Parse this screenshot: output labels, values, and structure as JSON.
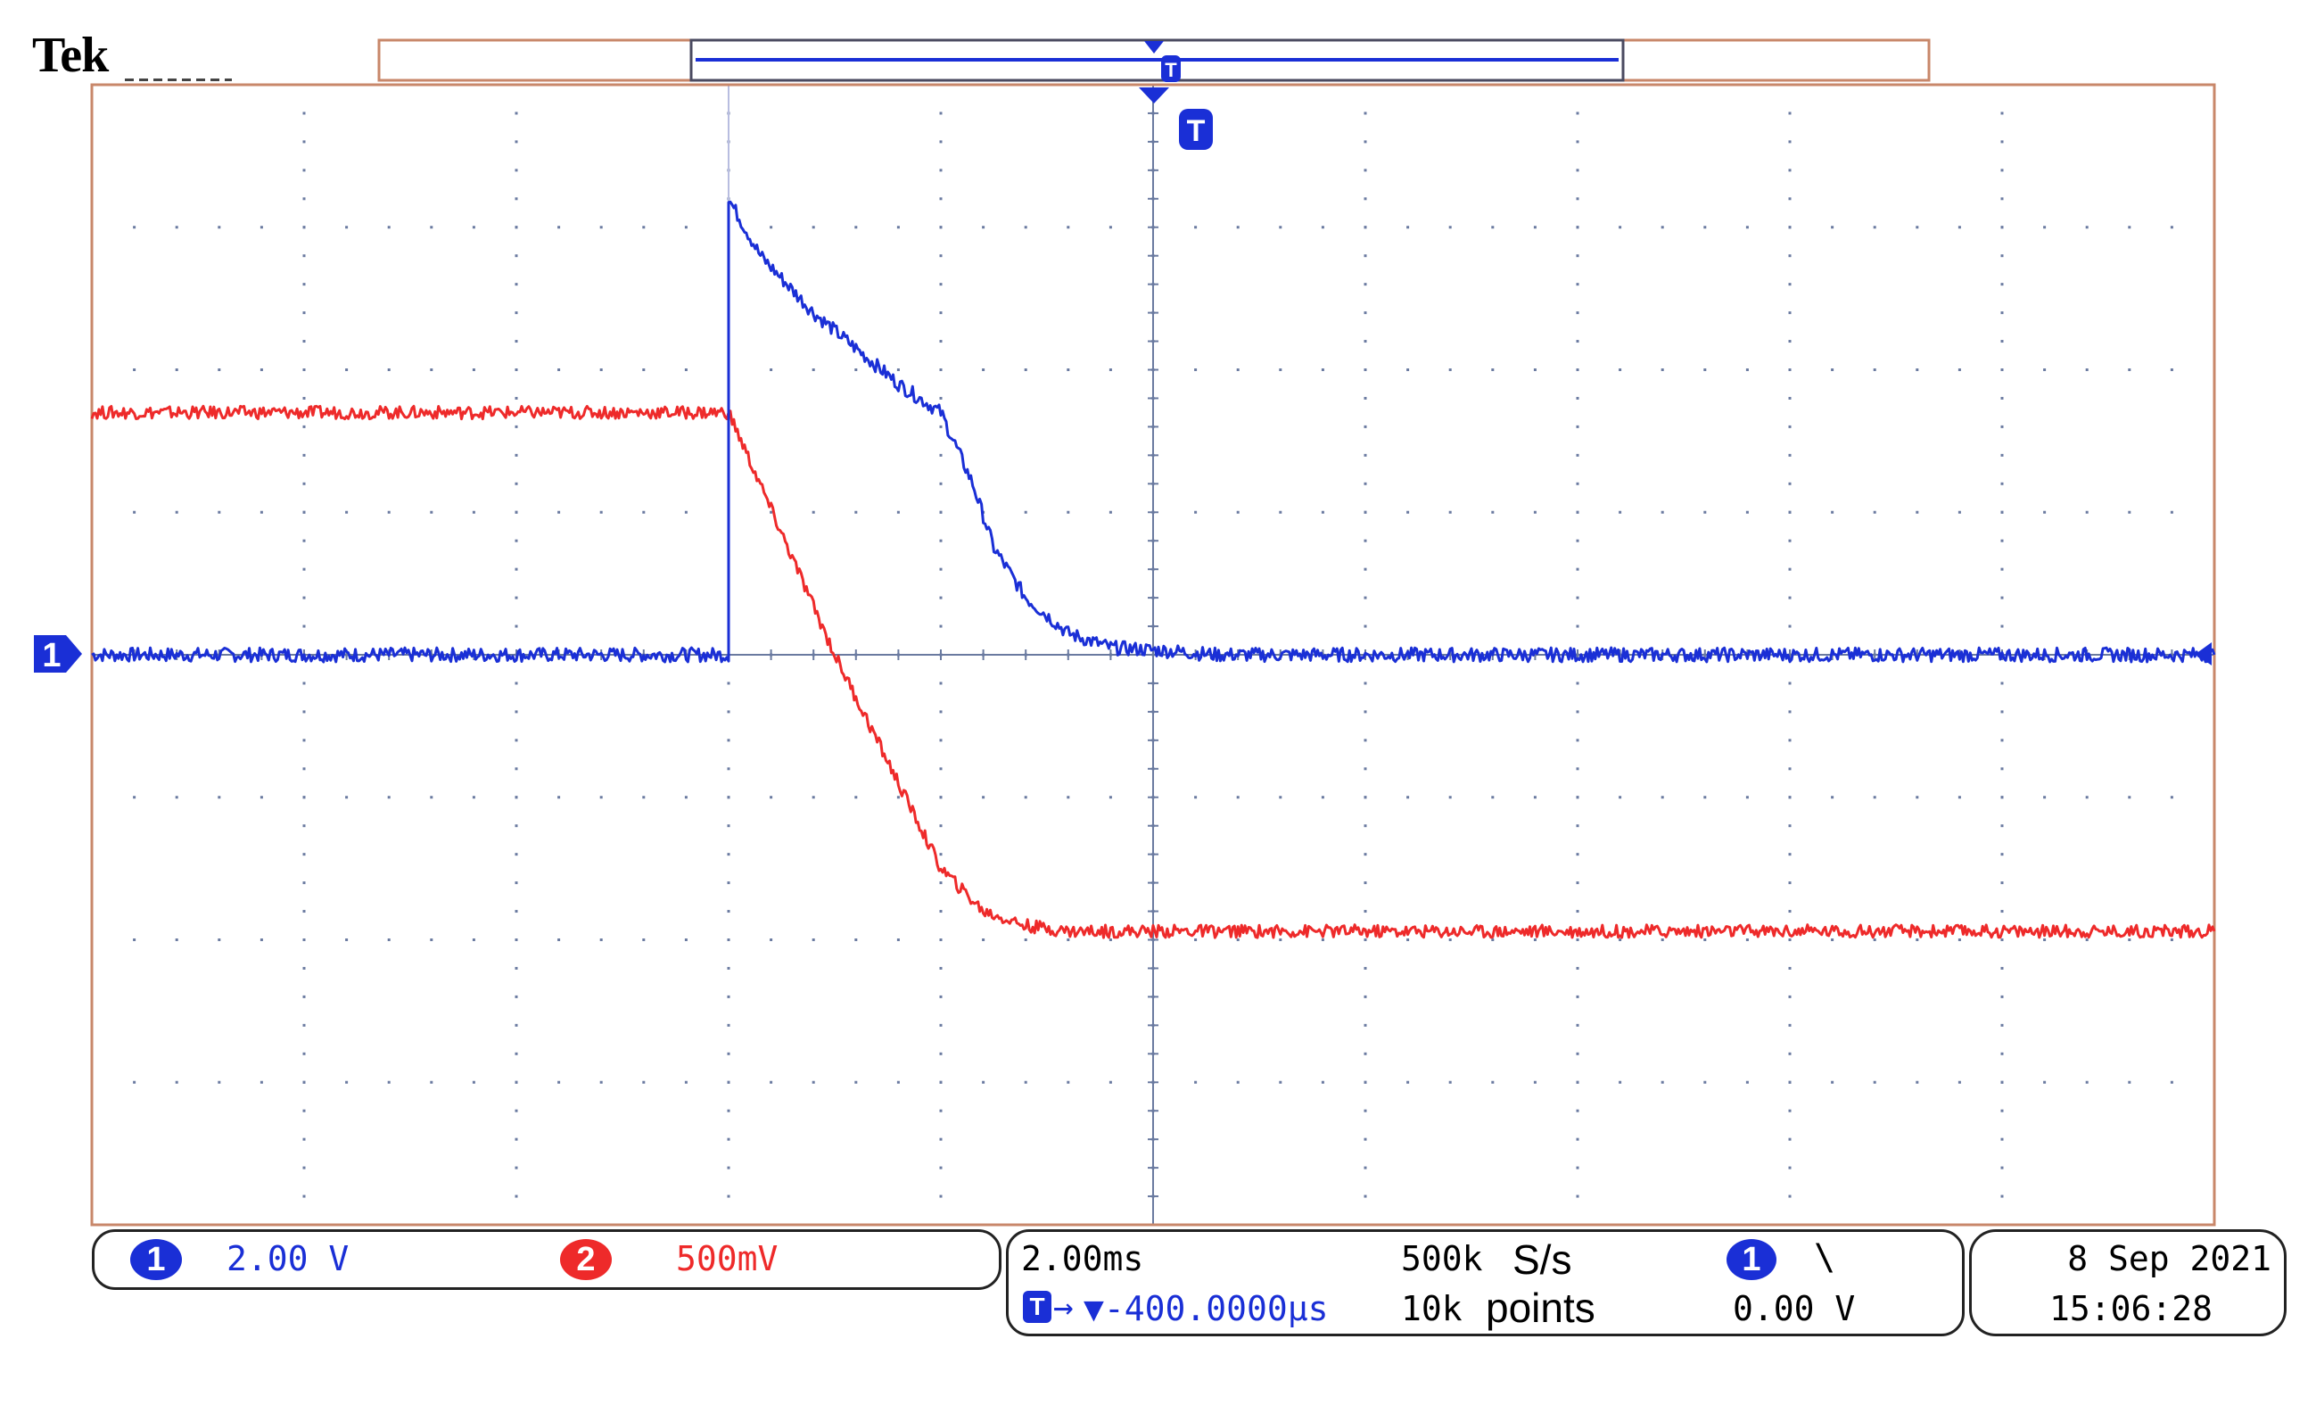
{
  "brand": "Tek",
  "colors": {
    "ch1": "#1a2fd6",
    "ch2": "#ee2a2a",
    "grid_border": "#c8876a",
    "grid_dots": "#6a7aa0",
    "axis": "#6a7aa0"
  },
  "markers": {
    "trigger_label": "T",
    "ch1_ground_label": "1"
  },
  "status": {
    "ch1": {
      "badge": "1",
      "scale": "2.00 V"
    },
    "ch2": {
      "badge": "2",
      "scale": "500mV"
    },
    "horizontal": {
      "timebase": "2.00ms",
      "sample_rate_value": "500k",
      "sample_rate_unit": "S/s",
      "trigger_position_icon": "trigger-arrow-icon",
      "trigger_position": "▼-400.0000µs",
      "record_value": "10k",
      "record_unit": "points"
    },
    "trigger": {
      "source_badge": "1",
      "slope_icon": "falling-edge-icon",
      "slope_glyph": "\\",
      "level": "0.00 V"
    },
    "datetime": {
      "date": "8 Sep 2021",
      "time": "15:06:28"
    }
  },
  "chart_data": {
    "type": "line",
    "x_unit": "ms",
    "x_divisions": 10,
    "y_divisions": 8,
    "xlim": [
      -10.4,
      9.6
    ],
    "grid": true,
    "series": [
      {
        "name": "1",
        "color": "#1a2fd6",
        "units": "V",
        "volts_per_div": 2.0,
        "x": [
          -10.4,
          -4.4,
          -4.4,
          -4.1,
          -3.6,
          -2.8,
          -2.4,
          -2.1,
          -1.9,
          -1.6,
          -1.2,
          -0.8,
          -0.2,
          0.2,
          9.6
        ],
        "y": [
          0.0,
          0.0,
          6.4,
          5.6,
          4.8,
          3.8,
          3.4,
          2.4,
          1.5,
          0.8,
          0.3,
          0.1,
          0.05,
          0.0,
          0.0
        ]
      },
      {
        "name": "2",
        "color": "#ee2a2a",
        "units": "V",
        "volts_per_div": 0.5,
        "x": [
          -10.4,
          -4.4,
          -3.4,
          -2.4,
          -2.0,
          -1.6,
          -1.2,
          -0.8,
          0.0,
          9.6
        ],
        "y": [
          0.85,
          0.85,
          0.0,
          -0.75,
          -0.9,
          -0.95,
          -0.97,
          -0.97,
          -0.97,
          -0.97
        ]
      }
    ]
  }
}
